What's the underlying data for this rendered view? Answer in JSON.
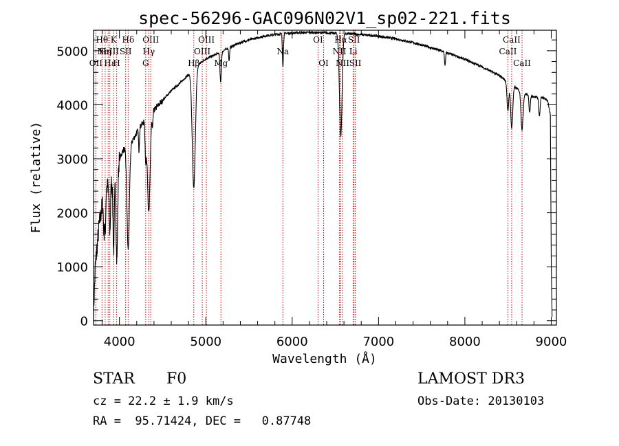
{
  "chart_data": {
    "type": "line",
    "title": "spec-56296-GAC096N02V1_sp02-221.fits",
    "xlabel": "Wavelength (Å)",
    "ylabel": "Flux (relative)",
    "xlim": [
      3700,
      9060
    ],
    "ylim": [
      -80,
      5380
    ],
    "xticks": [
      4000,
      5000,
      6000,
      7000,
      8000,
      9000
    ],
    "yticks": [
      0,
      1000,
      2000,
      3000,
      4000,
      5000
    ],
    "line_color": "#000000",
    "marker_color": "#cc0000",
    "continuum": [
      [
        3700,
        150
      ],
      [
        3720,
        1000
      ],
      [
        3760,
        1700
      ],
      [
        3800,
        2150
      ],
      [
        3850,
        2450
      ],
      [
        3900,
        2600
      ],
      [
        3950,
        2750
      ],
      [
        4000,
        3000
      ],
      [
        4050,
        3180
      ],
      [
        4100,
        3220
      ],
      [
        4150,
        3330
      ],
      [
        4200,
        3480
      ],
      [
        4250,
        3620
      ],
      [
        4300,
        3720
      ],
      [
        4400,
        3900
      ],
      [
        4500,
        4080
      ],
      [
        4600,
        4260
      ],
      [
        4700,
        4400
      ],
      [
        4800,
        4560
      ],
      [
        4900,
        4730
      ],
      [
        5000,
        4850
      ],
      [
        5100,
        4920
      ],
      [
        5200,
        5000
      ],
      [
        5300,
        5080
      ],
      [
        5400,
        5150
      ],
      [
        5500,
        5200
      ],
      [
        5600,
        5240
      ],
      [
        5700,
        5280
      ],
      [
        5800,
        5300
      ],
      [
        5900,
        5320
      ],
      [
        6000,
        5330
      ],
      [
        6200,
        5340
      ],
      [
        6400,
        5330
      ],
      [
        6600,
        5320
      ],
      [
        6800,
        5300
      ],
      [
        7000,
        5270
      ],
      [
        7200,
        5220
      ],
      [
        7400,
        5150
      ],
      [
        7600,
        5060
      ],
      [
        7800,
        4960
      ],
      [
        8000,
        4840
      ],
      [
        8200,
        4700
      ],
      [
        8400,
        4540
      ],
      [
        8500,
        4420
      ],
      [
        8600,
        4300
      ],
      [
        8700,
        4200
      ],
      [
        8800,
        4150
      ],
      [
        8900,
        4130
      ],
      [
        8960,
        4080
      ],
      [
        8990,
        3800
      ],
      [
        9000,
        1100
      ],
      [
        9010,
        60
      ]
    ],
    "absorption_lines": [
      {
        "wave": 3820,
        "depth": 600,
        "width": 6
      },
      {
        "wave": 3835,
        "depth": 700,
        "width": 6
      },
      {
        "wave": 3889,
        "depth": 900,
        "width": 8
      },
      {
        "wave": 3933,
        "depth": 1400,
        "width": 8
      },
      {
        "wave": 3970,
        "depth": 1750,
        "width": 9
      },
      {
        "wave": 4101,
        "depth": 1900,
        "width": 14
      },
      {
        "wave": 4226,
        "depth": 400,
        "width": 5
      },
      {
        "wave": 4305,
        "depth": 700,
        "width": 8
      },
      {
        "wave": 4340,
        "depth": 1800,
        "width": 15
      },
      {
        "wave": 4383,
        "depth": 300,
        "width": 5
      },
      {
        "wave": 4861,
        "depth": 2200,
        "width": 18
      },
      {
        "wave": 5172,
        "depth": 550,
        "width": 8
      },
      {
        "wave": 5270,
        "depth": 250,
        "width": 5
      },
      {
        "wave": 5893,
        "depth": 600,
        "width": 6
      },
      {
        "wave": 6563,
        "depth": 1900,
        "width": 15
      },
      {
        "wave": 7770,
        "depth": 260,
        "width": 6
      },
      {
        "wave": 8498,
        "depth": 550,
        "width": 10
      },
      {
        "wave": 8542,
        "depth": 800,
        "width": 12
      },
      {
        "wave": 8662,
        "depth": 700,
        "width": 12
      },
      {
        "wave": 8750,
        "depth": 300,
        "width": 8
      },
      {
        "wave": 8863,
        "depth": 350,
        "width": 8
      }
    ],
    "line_markers": [
      {
        "wave": 3727,
        "labels": [
          "OII"
        ],
        "rows": [
          3
        ]
      },
      {
        "wave": 3798,
        "labels": [
          "Hθ"
        ],
        "rows": [
          1
        ]
      },
      {
        "wave": 3835,
        "labels": [
          "Hη"
        ],
        "rows": [
          2
        ]
      },
      {
        "wave": 3869,
        "labels": [
          "NeIII"
        ],
        "rows": [
          2
        ]
      },
      {
        "wave": 3889,
        "labels": [
          "Hε"
        ],
        "rows": [
          3
        ]
      },
      {
        "wave": 3933,
        "labels": [
          "K"
        ],
        "rows": [
          1
        ]
      },
      {
        "wave": 3968,
        "labels": [
          "H"
        ],
        "rows": [
          3
        ]
      },
      {
        "wave": 4072,
        "labels": [
          "SII"
        ],
        "rows": [
          2
        ]
      },
      {
        "wave": 4101,
        "labels": [
          "Hδ"
        ],
        "rows": [
          1
        ]
      },
      {
        "wave": 4304,
        "labels": [
          "G"
        ],
        "rows": [
          3
        ]
      },
      {
        "wave": 4340,
        "labels": [
          "Hγ"
        ],
        "rows": [
          2
        ]
      },
      {
        "wave": 4363,
        "labels": [
          "OIII"
        ],
        "rows": [
          1
        ]
      },
      {
        "wave": 4861,
        "labels": [
          "Hβ"
        ],
        "rows": [
          3
        ]
      },
      {
        "wave": 4959,
        "labels": [
          "OIII"
        ],
        "rows": [
          2
        ]
      },
      {
        "wave": 5007,
        "labels": [
          "OIII"
        ],
        "rows": [
          1
        ]
      },
      {
        "wave": 5175,
        "labels": [
          "Mg"
        ],
        "rows": [
          3
        ]
      },
      {
        "wave": 5893,
        "labels": [
          "Na"
        ],
        "rows": [
          2
        ]
      },
      {
        "wave": 6300,
        "labels": [
          "OI"
        ],
        "rows": [
          1
        ]
      },
      {
        "wave": 6364,
        "labels": [
          "OI"
        ],
        "rows": [
          3
        ]
      },
      {
        "wave": 6548,
        "labels": [
          "NII"
        ],
        "rows": [
          2
        ]
      },
      {
        "wave": 6563,
        "labels": [
          "Hα"
        ],
        "rows": [
          1
        ]
      },
      {
        "wave": 6583,
        "labels": [
          "NII"
        ],
        "rows": [
          3
        ]
      },
      {
        "wave": 6708,
        "labels": [
          "Li"
        ],
        "rows": [
          2
        ]
      },
      {
        "wave": 6716,
        "labels": [
          "SII"
        ],
        "rows": [
          1
        ]
      },
      {
        "wave": 6731,
        "labels": [
          "SII"
        ],
        "rows": [
          3
        ]
      },
      {
        "wave": 8498,
        "labels": [
          "CaII"
        ],
        "rows": [
          2
        ]
      },
      {
        "wave": 8542,
        "labels": [
          "CaII"
        ],
        "rows": [
          1
        ]
      },
      {
        "wave": 8662,
        "labels": [
          "CaII"
        ],
        "rows": [
          3
        ]
      }
    ]
  },
  "info": {
    "object_class": "STAR",
    "subclass": "F0",
    "survey": "LAMOST DR3",
    "redshift": "cz = 22.2 ± 1.9 km/s",
    "obs_date": "Obs-Date: 20130103",
    "coords": "RA =  95.71424, DEC =   0.87748"
  }
}
